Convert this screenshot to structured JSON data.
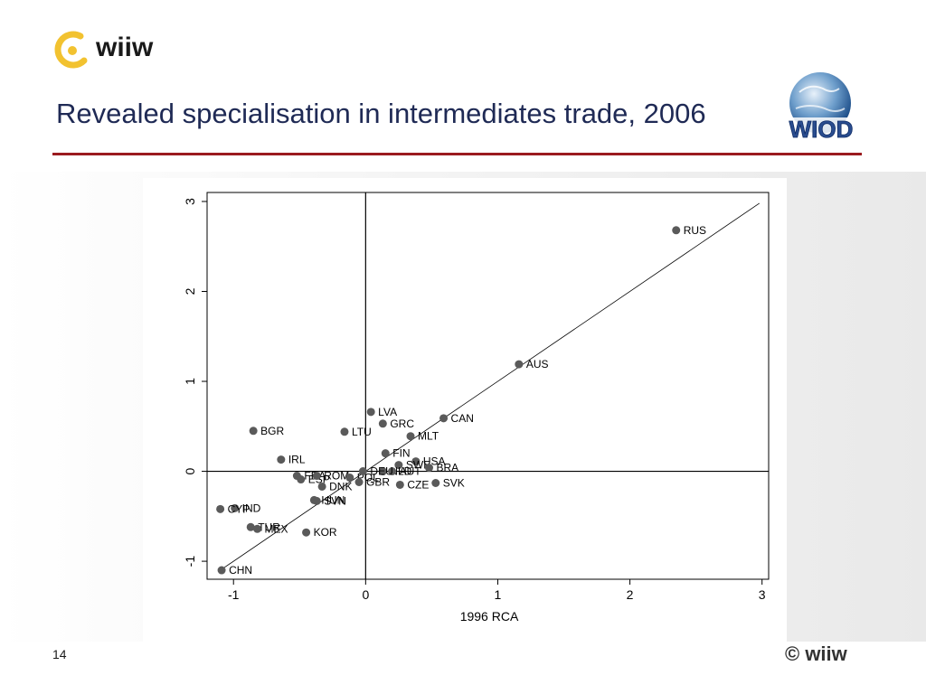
{
  "header": {
    "logo_text": "wiiw",
    "title": "Revealed specialisation in intermediates trade, 2006",
    "wiod_logo_text": "WIOD"
  },
  "footer": {
    "page_number": "14",
    "copyright": "© wiiw"
  },
  "colors": {
    "title": "#1f2a55",
    "rule": "#9b1b1f",
    "marker": "#5a5a5a",
    "logo_ring": "#f2c230"
  },
  "chart_data": {
    "type": "scatter",
    "title": "",
    "xlabel": "1996 RCA",
    "ylabel": "",
    "xlim": [
      -1.2,
      3.05
    ],
    "ylim": [
      -1.2,
      3.1
    ],
    "xticks": [
      -1,
      0,
      1,
      2,
      3
    ],
    "yticks": [
      -1,
      0,
      1,
      2,
      3
    ],
    "reference_lines": {
      "x": 0,
      "y": 0,
      "diagonal": "45-degree"
    },
    "points": [
      {
        "label": "RUS",
        "x": 2.35,
        "y": 2.68
      },
      {
        "label": "AUS",
        "x": 1.16,
        "y": 1.19
      },
      {
        "label": "CAN",
        "x": 0.59,
        "y": 0.59
      },
      {
        "label": "LVA",
        "x": 0.04,
        "y": 0.66
      },
      {
        "label": "GRC",
        "x": 0.13,
        "y": 0.53
      },
      {
        "label": "MLT",
        "x": 0.34,
        "y": 0.39
      },
      {
        "label": "BGR",
        "x": -0.85,
        "y": 0.45
      },
      {
        "label": "LTU",
        "x": -0.16,
        "y": 0.44
      },
      {
        "label": "FIN",
        "x": 0.15,
        "y": 0.2
      },
      {
        "label": "USA",
        "x": 0.38,
        "y": 0.11
      },
      {
        "label": "SWE",
        "x": 0.25,
        "y": 0.07
      },
      {
        "label": "BRA",
        "x": 0.48,
        "y": 0.04
      },
      {
        "label": "NLD",
        "x": 0.13,
        "y": 0.0
      },
      {
        "label": "AUT",
        "x": 0.2,
        "y": 0.0
      },
      {
        "label": "IRL",
        "x": -0.64,
        "y": 0.13
      },
      {
        "label": "FRA",
        "x": -0.52,
        "y": -0.05
      },
      {
        "label": "ESP",
        "x": -0.49,
        "y": -0.09
      },
      {
        "label": "ROM",
        "x": -0.37,
        "y": -0.05
      },
      {
        "label": "POL",
        "x": -0.12,
        "y": -0.07
      },
      {
        "label": "DEU",
        "x": -0.02,
        "y": 0.0
      },
      {
        "label": "GBR",
        "x": -0.05,
        "y": -0.12
      },
      {
        "label": "SVK",
        "x": 0.53,
        "y": -0.13
      },
      {
        "label": "CZE",
        "x": 0.26,
        "y": -0.15
      },
      {
        "label": "DNK",
        "x": -0.33,
        "y": -0.17
      },
      {
        "label": "HUN",
        "x": -0.39,
        "y": -0.32
      },
      {
        "label": "SVN",
        "x": -0.37,
        "y": -0.33
      },
      {
        "label": "IND",
        "x": -0.99,
        "y": -0.41
      },
      {
        "label": "CYP",
        "x": -1.1,
        "y": -0.42
      },
      {
        "label": "TUR",
        "x": -0.87,
        "y": -0.62
      },
      {
        "label": "MEX",
        "x": -0.82,
        "y": -0.64
      },
      {
        "label": "KOR",
        "x": -0.45,
        "y": -0.68
      },
      {
        "label": "CHN",
        "x": -1.09,
        "y": -1.1
      }
    ]
  }
}
